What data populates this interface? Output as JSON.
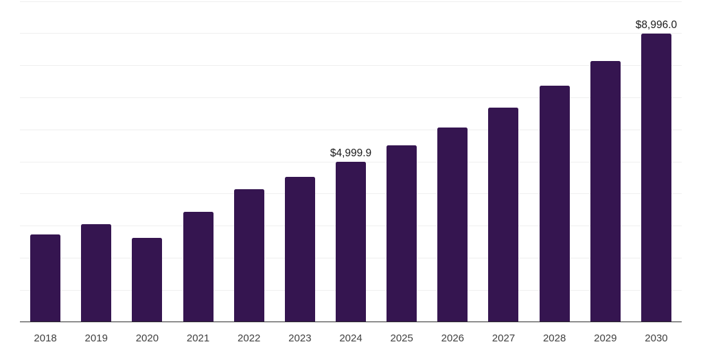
{
  "chart_data": {
    "type": "bar",
    "title": "",
    "xlabel": "",
    "ylabel": "",
    "categories": [
      "2018",
      "2019",
      "2020",
      "2021",
      "2022",
      "2023",
      "2024",
      "2025",
      "2026",
      "2027",
      "2028",
      "2029",
      "2030"
    ],
    "values": [
      2745,
      3050,
      2620,
      3430,
      4135,
      4540,
      4999.9,
      5510,
      6070,
      6690,
      7380,
      8150,
      8996.0
    ],
    "data_labels": [
      "",
      "",
      "",
      "",
      "",
      "",
      "$4,999.9",
      "",
      "",
      "",
      "",
      "",
      "$8,996.0"
    ],
    "ylim": [
      0,
      10000
    ],
    "gridline_interval": 1000,
    "grid": "on",
    "legend_position": "none",
    "colors": {
      "bar": "#351550",
      "gridline": "#efefef",
      "axis_line": "#2e2e2e",
      "tick_label": "#404040",
      "data_label": "#1a1a1a",
      "background": "#ffffff"
    }
  }
}
